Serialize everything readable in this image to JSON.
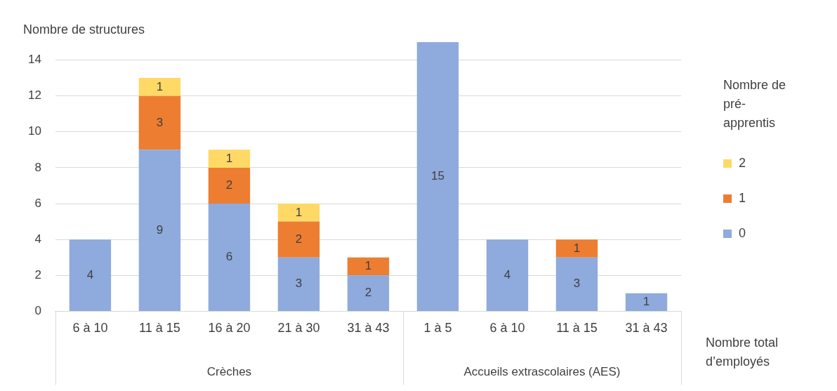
{
  "chart_data": {
    "type": "bar",
    "stacked": true,
    "ylabel": "Nombre de structures",
    "xlabel": "Nombre total d’employés",
    "legend_title": "Nombre de pré-apprentis",
    "legend": "right",
    "categories": [
      "6 à 10",
      "11 à 15",
      "16 à 20",
      "21 à 30",
      "31 à 43",
      "1 à 5",
      "6 à 10",
      "11 à 15",
      "31 à 43"
    ],
    "series": [
      {
        "name": "0",
        "color": "#8faadc",
        "values": [
          4,
          9,
          6,
          3,
          2,
          15,
          4,
          3,
          1
        ]
      },
      {
        "name": "1",
        "color": "#ed7d31",
        "values": [
          null,
          3,
          2,
          2,
          1,
          null,
          null,
          1,
          null
        ]
      },
      {
        "name": "2",
        "color": "#ffd966",
        "values": [
          null,
          1,
          1,
          1,
          null,
          null,
          null,
          null,
          null
        ]
      }
    ],
    "ylim": [
      0,
      15
    ],
    "yticks": [
      0,
      2,
      4,
      6,
      8,
      10,
      12,
      14
    ],
    "grid": "y",
    "data_labels": true,
    "annotations": [
      "Crèches",
      "Accueils extrascolaires (AES)"
    ]
  }
}
